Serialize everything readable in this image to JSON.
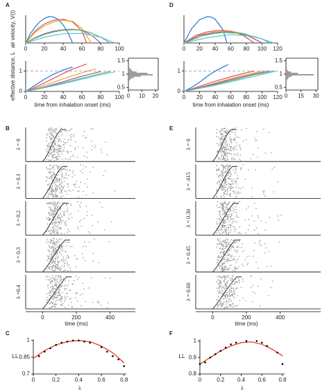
{
  "chart_data": [
    {
      "type": "line",
      "panel_letter": "A",
      "ylabel": "air velocity, V(t)",
      "xlim": [
        0,
        100
      ],
      "xticks": [
        0,
        20,
        40,
        60,
        80,
        100
      ],
      "ylim": [
        0,
        1.05
      ],
      "series": [
        {
          "color": "#1f77d4",
          "x": [
            0,
            5,
            10,
            15,
            20,
            25,
            30,
            35,
            40,
            45,
            50
          ],
          "values": [
            0,
            0.35,
            0.6,
            0.8,
            0.93,
            1.0,
            0.98,
            0.88,
            0.68,
            0.4,
            0
          ]
        },
        {
          "color": "#d9534f",
          "x": [
            0,
            10,
            20,
            30,
            40,
            50,
            60,
            65
          ],
          "values": [
            0,
            0.45,
            0.72,
            0.86,
            0.9,
            0.8,
            0.45,
            0
          ]
        },
        {
          "color": "#f0a030",
          "x": [
            0,
            10,
            20,
            30,
            40,
            50,
            60,
            70
          ],
          "values": [
            0,
            0.4,
            0.65,
            0.8,
            0.86,
            0.82,
            0.55,
            0
          ]
        },
        {
          "color": "#9b59b6",
          "x": [
            0,
            10,
            20,
            30,
            40,
            50,
            60,
            70,
            80
          ],
          "values": [
            0,
            0.2,
            0.35,
            0.45,
            0.5,
            0.52,
            0.48,
            0.3,
            0
          ]
        },
        {
          "color": "#5cb85c",
          "x": [
            0,
            10,
            20,
            30,
            40,
            50,
            60,
            70,
            80,
            90
          ],
          "values": [
            0,
            0.18,
            0.32,
            0.42,
            0.48,
            0.5,
            0.48,
            0.38,
            0.22,
            0
          ]
        },
        {
          "color": "#5bc0de",
          "x": [
            0,
            20,
            40,
            60,
            80,
            95
          ],
          "values": [
            0,
            0.22,
            0.35,
            0.36,
            0.22,
            0
          ]
        }
      ]
    },
    {
      "type": "line",
      "ylabel": "effective distance, L",
      "xlabel": "time from inhalation onset (ms)",
      "xlim": [
        0,
        100
      ],
      "xticks": [
        0,
        20,
        40,
        60,
        80,
        100
      ],
      "ylim": [
        0,
        1.5
      ],
      "yticks": [
        0,
        1
      ],
      "hline": 1,
      "series": [
        {
          "color": "#1f77d4",
          "x": [
            0,
            10,
            20,
            30,
            40,
            50
          ],
          "values": [
            0,
            0.3,
            0.6,
            0.85,
            1.05,
            1.2
          ]
        },
        {
          "color": "#d9534f",
          "x": [
            0,
            10,
            20,
            30,
            40,
            50,
            65
          ],
          "values": [
            0,
            0.2,
            0.42,
            0.65,
            0.88,
            1.1,
            1.35
          ]
        },
        {
          "color": "#f0a030",
          "x": [
            0,
            20,
            40,
            60,
            75
          ],
          "values": [
            0,
            0.3,
            0.62,
            0.92,
            1.12
          ]
        },
        {
          "color": "#9b59b6",
          "x": [
            0,
            20,
            40,
            60,
            80
          ],
          "values": [
            0,
            0.22,
            0.48,
            0.75,
            0.98
          ]
        },
        {
          "color": "#5cb85c",
          "x": [
            0,
            20,
            40,
            60,
            80,
            90
          ],
          "values": [
            0,
            0.2,
            0.42,
            0.65,
            0.88,
            0.98
          ]
        },
        {
          "color": "#5bc0de",
          "x": [
            0,
            20,
            40,
            60,
            80,
            95
          ],
          "values": [
            0,
            0.18,
            0.38,
            0.6,
            0.82,
            0.96
          ]
        }
      ]
    },
    {
      "type": "histogram",
      "orientation": "horizontal",
      "color": "#999999",
      "bins": [
        0.75,
        0.8,
        0.85,
        0.9,
        0.95,
        1,
        1.05,
        1.1,
        1.15,
        1.2,
        1.25
      ],
      "counts": [
        1,
        2,
        4,
        9,
        18,
        14,
        6,
        3,
        2,
        1
      ],
      "xlim": [
        0,
        22
      ],
      "xticks": [
        0,
        10,
        20
      ],
      "ylim": [
        0.4,
        1.6
      ],
      "yticks": [
        0.5,
        1,
        1.5
      ]
    },
    {
      "type": "line",
      "panel_letter": "D",
      "xlim": [
        0,
        120
      ],
      "xticks": [
        0,
        20,
        40,
        60,
        80,
        100,
        120
      ],
      "ylim": [
        0,
        1.05
      ],
      "series": [
        {
          "color": "#1f77d4",
          "x": [
            0,
            10,
            20,
            30,
            35,
            40,
            50,
            55
          ],
          "values": [
            0,
            0.55,
            0.88,
            1.0,
            0.98,
            0.9,
            0.5,
            0
          ]
        },
        {
          "color": "#d9534f",
          "x": [
            0,
            15,
            30,
            45,
            60,
            75,
            90
          ],
          "values": [
            0,
            0.28,
            0.42,
            0.48,
            0.45,
            0.3,
            0
          ]
        },
        {
          "color": "#f0a030",
          "x": [
            0,
            20,
            40,
            60,
            80,
            100
          ],
          "values": [
            0,
            0.3,
            0.42,
            0.45,
            0.33,
            0
          ]
        },
        {
          "color": "#9b59b6",
          "x": [
            0,
            20,
            40,
            60,
            80,
            100
          ],
          "values": [
            0,
            0.28,
            0.4,
            0.42,
            0.3,
            0
          ]
        },
        {
          "color": "#5cb85c",
          "x": [
            0,
            25,
            50,
            75,
            100,
            110
          ],
          "values": [
            0,
            0.28,
            0.4,
            0.36,
            0.15,
            0
          ]
        },
        {
          "color": "#5bc0de",
          "x": [
            0,
            30,
            60,
            90,
            115
          ],
          "values": [
            0,
            0.2,
            0.32,
            0.25,
            0
          ]
        }
      ]
    },
    {
      "type": "line",
      "xlabel": "time from inhalation onset (ms)",
      "xlim": [
        0,
        120
      ],
      "xticks": [
        0,
        20,
        40,
        60,
        80,
        100,
        120
      ],
      "ylim": [
        0,
        1.5
      ],
      "yticks": [
        0,
        1
      ],
      "hline": 1,
      "series": [
        {
          "color": "#1f77d4",
          "x": [
            0,
            10,
            20,
            30,
            40,
            50,
            57
          ],
          "values": [
            0,
            0.2,
            0.45,
            0.75,
            1.0,
            1.2,
            1.33
          ]
        },
        {
          "color": "#d9534f",
          "x": [
            0,
            20,
            40,
            60,
            80,
            90
          ],
          "values": [
            0,
            0.25,
            0.5,
            0.72,
            0.92,
            1.0
          ]
        },
        {
          "color": "#f0a030",
          "x": [
            0,
            25,
            50,
            75,
            100
          ],
          "values": [
            0,
            0.25,
            0.52,
            0.78,
            1.0
          ]
        },
        {
          "color": "#9b59b6",
          "x": [
            0,
            30,
            60,
            90,
            110
          ],
          "values": [
            0,
            0.28,
            0.58,
            0.86,
            1.02
          ]
        },
        {
          "color": "#5cb85c",
          "x": [
            0,
            30,
            60,
            90,
            115
          ],
          "values": [
            0,
            0.25,
            0.52,
            0.82,
            1.0
          ]
        },
        {
          "color": "#5bc0de",
          "x": [
            0,
            40,
            80,
            118
          ],
          "values": [
            0,
            0.3,
            0.65,
            1.0
          ]
        }
      ]
    },
    {
      "type": "histogram",
      "orientation": "horizontal",
      "color": "#999999",
      "bins": [
        0.75,
        0.8,
        0.85,
        0.9,
        0.95,
        1,
        1.05,
        1.1,
        1.15,
        1.2,
        1.25
      ],
      "counts": [
        1,
        2,
        3,
        6,
        28,
        12,
        5,
        2,
        1,
        1
      ],
      "xlim": [
        0,
        32
      ],
      "xticks": [
        0,
        15,
        30
      ],
      "ylim": [
        0.4,
        1.6
      ],
      "yticks": [
        0.5,
        1,
        1.5
      ]
    },
    {
      "type": "raster",
      "panel_letter": "B",
      "panel_labels": [
        "λ = 0",
        "λ = 0.1",
        "λ = 0.2",
        "λ = 0.3",
        "λ =0.4"
      ],
      "xlabel": "time (ms)",
      "xlim": [
        -100,
        550
      ],
      "xticks": [
        0,
        200,
        400
      ]
    },
    {
      "type": "raster",
      "panel_letter": "E",
      "panel_labels": [
        "λ = 0",
        "λ = .015",
        "λ = 0.30",
        "λ = 0.45",
        "λ = 0.60"
      ],
      "xlabel": "time (ms)",
      "xlim": [
        -100,
        640
      ],
      "xticks": [
        0,
        200,
        400
      ]
    },
    {
      "type": "fit",
      "panel_letter": "C",
      "xlabel": "λ",
      "ylabel": "LL",
      "xlim": [
        0,
        0.82
      ],
      "xticks": [
        0,
        0.2,
        0.4,
        0.6,
        0.8
      ],
      "ylim": [
        0.7,
        1.01
      ],
      "yticks": [
        0.7,
        0.85,
        1
      ],
      "points": {
        "color": "#000000",
        "x": [
          0.05,
          0.1,
          0.15,
          0.2,
          0.25,
          0.3,
          0.35,
          0.4,
          0.45,
          0.5,
          0.6,
          0.65,
          0.7,
          0.75,
          0.8
        ],
        "values": [
          0.86,
          0.9,
          0.93,
          0.96,
          0.98,
          0.99,
          1.0,
          1.0,
          0.99,
          0.98,
          0.94,
          0.9,
          0.86,
          0.83,
          0.77
        ]
      },
      "fit": {
        "color": "#e03010",
        "x": [
          0,
          0.1,
          0.2,
          0.3,
          0.4,
          0.5,
          0.6,
          0.7,
          0.8
        ],
        "values": [
          0.84,
          0.91,
          0.96,
          0.99,
          1.0,
          0.99,
          0.95,
          0.89,
          0.8
        ]
      }
    },
    {
      "type": "fit",
      "panel_letter": "F",
      "xlabel": "λ",
      "ylabel": "LL",
      "xlim": [
        0,
        0.82
      ],
      "xticks": [
        0,
        0.2,
        0.4,
        0.6,
        0.8
      ],
      "ylim": [
        0.8,
        1.01
      ],
      "yticks": [
        0.8,
        0.9,
        1
      ],
      "points": {
        "color": "#000000",
        "x": [
          0,
          0.05,
          0.1,
          0.15,
          0.2,
          0.25,
          0.3,
          0.35,
          0.45,
          0.55,
          0.6,
          0.65,
          0.75,
          0.8
        ],
        "values": [
          0.86,
          0.87,
          0.9,
          0.92,
          0.94,
          0.96,
          0.98,
          0.99,
          1.0,
          1.0,
          0.99,
          0.97,
          0.93,
          0.86
        ]
      },
      "fit": {
        "color": "#e03010",
        "x": [
          0,
          0.1,
          0.2,
          0.3,
          0.4,
          0.5,
          0.6,
          0.7,
          0.8
        ],
        "values": [
          0.86,
          0.9,
          0.94,
          0.97,
          0.99,
          0.995,
          0.98,
          0.95,
          0.91
        ]
      }
    }
  ]
}
